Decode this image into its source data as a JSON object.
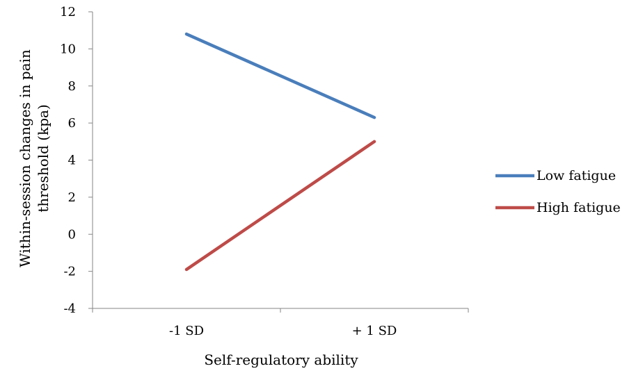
{
  "chart_data": {
    "type": "line",
    "title": "",
    "xlabel": "Self-regulatory ability",
    "ylabel_lines": [
      "Within-session changes in pain",
      "threshold (kpa)"
    ],
    "categories": [
      "-1 SD",
      "+ 1 SD"
    ],
    "ylim": [
      -4,
      12
    ],
    "yticks": [
      -4,
      -2,
      0,
      2,
      4,
      6,
      8,
      10,
      12
    ],
    "grid": false,
    "legend_position": "right",
    "series": [
      {
        "name": "Low fatigue",
        "values": [
          10.8,
          6.3
        ],
        "color": "#4a7ebb"
      },
      {
        "name": "High fatigue",
        "values": [
          -1.9,
          5.0
        ],
        "color": "#be4b48"
      }
    ]
  }
}
